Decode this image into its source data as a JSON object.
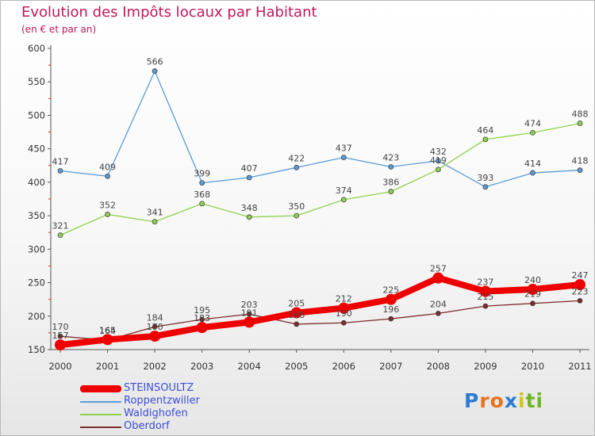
{
  "title": "Evolution des Impôts locaux par Habitant",
  "subtitle": "(en € et par an)",
  "brand": {
    "text": "Proxiti",
    "letters": [
      "P",
      "r",
      "o",
      "x",
      "i",
      "t",
      "i"
    ],
    "colors": [
      "#2e7bd3",
      "#e8731f",
      "#e8731f",
      "#2e7bd3",
      "#d3c31f",
      "#6fb522",
      "#6fb522"
    ]
  },
  "chart_data": {
    "type": "line",
    "x": [
      "2000",
      "2001",
      "2002",
      "2003",
      "2004",
      "2005",
      "2006",
      "2007",
      "2008",
      "2009",
      "2010",
      "2011"
    ],
    "ylim": [
      150,
      600
    ],
    "yticks": [
      "150",
      "200",
      "250",
      "300",
      "350",
      "400",
      "450",
      "500",
      "550",
      "600"
    ],
    "grid": false,
    "legend_position": "bottom-left",
    "series": [
      {
        "name": "STEINSOULTZ",
        "color": "#ee0000",
        "values": [
          157,
          165,
          170,
          183,
          191,
          205,
          212,
          225,
          257,
          237,
          240,
          247
        ],
        "labels": [
          "157",
          "165",
          "170",
          "183",
          "191",
          "205",
          "212",
          "225",
          "257",
          "237",
          "240",
          "247"
        ],
        "emphasis": true
      },
      {
        "name": "Roppentzwiller",
        "color": "#5b9bd5",
        "values": [
          417,
          409,
          566,
          399,
          407,
          422,
          437,
          423,
          432,
          393,
          414,
          418
        ],
        "labels": [
          "417",
          "409",
          "566",
          "399",
          "407",
          "422",
          "437",
          "423",
          "432",
          "393",
          "414",
          "418"
        ],
        "emphasis": false
      },
      {
        "name": "Waldighofen",
        "color": "#8fd14f",
        "values": [
          321,
          352,
          341,
          368,
          348,
          350,
          374,
          386,
          419,
          464,
          474,
          488
        ],
        "labels": [
          "321",
          "352",
          "341",
          "368",
          "348",
          "350",
          "374",
          "386",
          "419",
          "464",
          "474",
          "488"
        ],
        "emphasis": false
      },
      {
        "name": "Oberdorf",
        "color": "#7d2a2a",
        "values": [
          170,
          164,
          184,
          195,
          203,
          188,
          190,
          196,
          204,
          215,
          219,
          223
        ],
        "labels": [
          "170",
          "164",
          "184",
          "195",
          "203",
          "188",
          "190",
          "196",
          "204",
          "215",
          "219",
          "223"
        ],
        "emphasis": false
      }
    ]
  }
}
